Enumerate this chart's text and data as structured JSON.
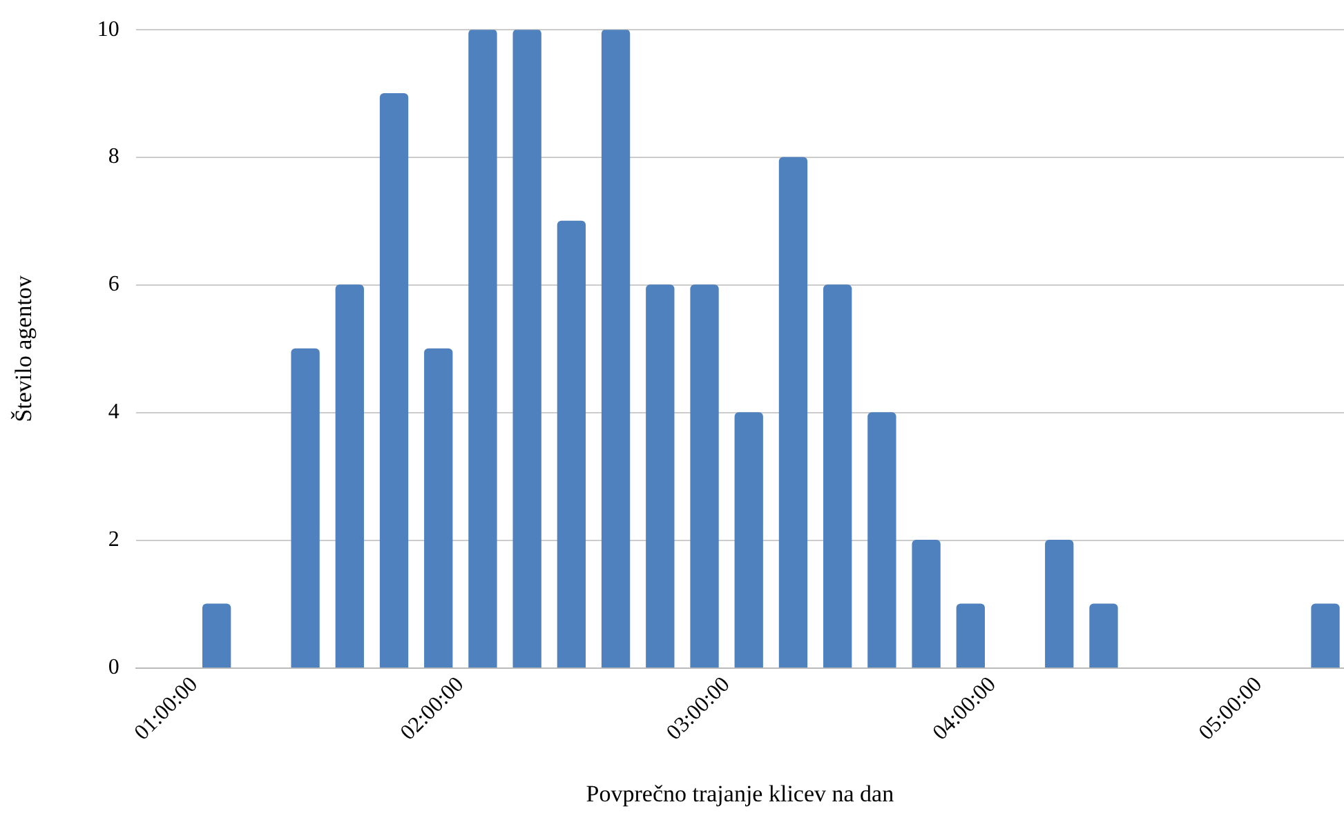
{
  "chart_data": {
    "type": "bar",
    "xlabel": "Povprečno trajanje klicev na dan",
    "ylabel": "Število agentov",
    "x": [
      1.0833,
      1.4167,
      1.5833,
      1.75,
      1.9167,
      2.0833,
      2.25,
      2.4167,
      2.5833,
      2.75,
      2.9167,
      3.0833,
      3.25,
      3.4167,
      3.5833,
      3.75,
      3.9167,
      4.25,
      4.4167,
      5.25
    ],
    "values": [
      1,
      5,
      6,
      9,
      5,
      10,
      10,
      7,
      10,
      6,
      6,
      4,
      8,
      6,
      4,
      2,
      1,
      2,
      1,
      1
    ],
    "color": "#4e81bd",
    "xlim": [
      0.78,
      5.32
    ],
    "xticks": [
      {
        "value": 1,
        "label": "01:00:00"
      },
      {
        "value": 2,
        "label": "02:00:00"
      },
      {
        "value": 3,
        "label": "03:00:00"
      },
      {
        "value": 4,
        "label": "04:00:00"
      },
      {
        "value": 5,
        "label": "05:00:00"
      }
    ],
    "ylim": [
      0,
      10
    ],
    "yticks": [
      0,
      2,
      4,
      6,
      8,
      10
    ],
    "grid": "y"
  }
}
